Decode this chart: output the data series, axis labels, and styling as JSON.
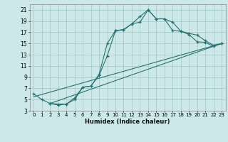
{
  "title": "",
  "xlabel": "Humidex (Indice chaleur)",
  "bg_color": "#cce8e8",
  "grid_color": "#aacccc",
  "line_color": "#2a7070",
  "xlim": [
    -0.5,
    23.5
  ],
  "ylim": [
    3,
    22
  ],
  "xticks": [
    0,
    1,
    2,
    3,
    4,
    5,
    6,
    7,
    8,
    9,
    10,
    11,
    12,
    13,
    14,
    15,
    16,
    17,
    18,
    19,
    20,
    21,
    22,
    23
  ],
  "yticks": [
    3,
    5,
    7,
    9,
    11,
    13,
    15,
    17,
    19,
    21
  ],
  "line1_x": [
    0,
    1,
    2,
    3,
    4,
    5,
    6,
    7,
    8,
    9,
    10,
    11,
    12,
    13,
    14,
    15,
    16,
    17,
    18,
    19,
    20,
    21,
    22,
    23
  ],
  "line1_y": [
    6,
    5,
    4.3,
    4.2,
    4.2,
    5.3,
    7.2,
    7.4,
    9.5,
    15.0,
    17.3,
    17.4,
    18.5,
    18.8,
    21.0,
    19.4,
    19.4,
    18.8,
    17.2,
    16.6,
    15.3,
    15.2,
    14.5,
    15.0
  ],
  "line2_x": [
    2,
    3,
    4,
    5,
    6,
    7,
    8,
    9,
    10,
    11,
    12,
    13,
    14,
    15,
    16,
    17,
    18,
    19,
    20,
    21,
    22,
    23
  ],
  "line2_y": [
    4.3,
    4.0,
    4.2,
    5.0,
    7.2,
    7.4,
    9.3,
    12.8,
    17.3,
    17.5,
    18.5,
    19.8,
    21.0,
    19.4,
    19.4,
    17.3,
    17.2,
    16.8,
    16.5,
    15.5,
    14.7,
    15.0
  ],
  "line3_x": [
    0,
    23
  ],
  "line3_y": [
    5.5,
    15.0
  ],
  "line4_x": [
    2,
    23
  ],
  "line4_y": [
    4.3,
    15.0
  ]
}
